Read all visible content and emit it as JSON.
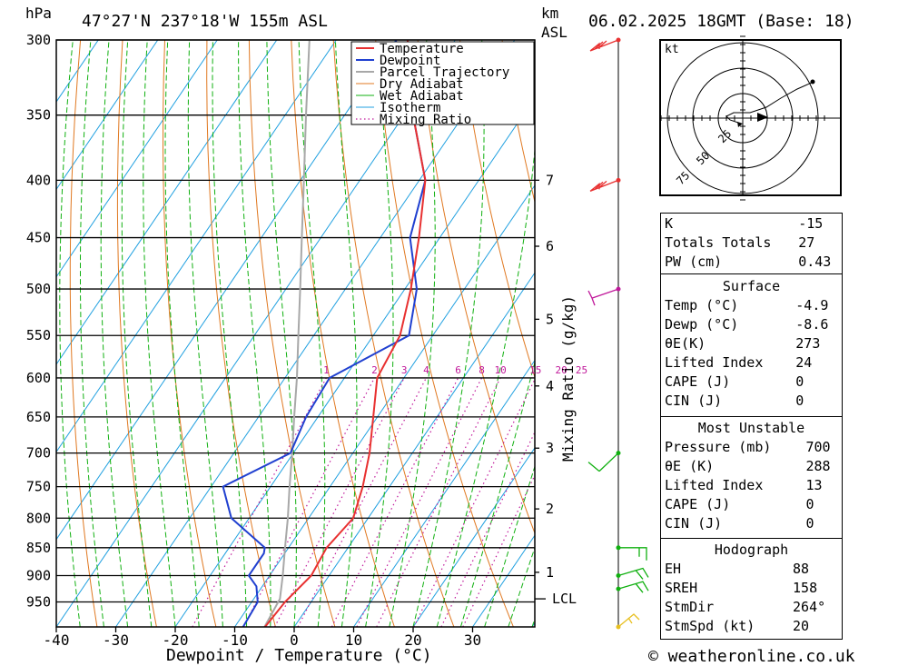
{
  "header": {
    "unit_hpa": "hPa",
    "location": "47°27'N  237°18'W  155m  ASL",
    "km_label": "km",
    "asl_label": "ASL",
    "datetime": "06.02.2025  18GMT  (Base: 18)"
  },
  "chart_data": {
    "type": "line",
    "title": "47°27'N  237°18'W  155m  ASL",
    "xlabel": "Dewpoint / Temperature (°C)",
    "ylabel": "hPa",
    "y2label": "Mixing Ratio (g/kg)",
    "x_ticks": [
      -40,
      -30,
      -20,
      -10,
      0,
      10,
      20,
      30
    ],
    "pressure_ticks": [
      300,
      350,
      400,
      450,
      500,
      550,
      600,
      650,
      700,
      750,
      800,
      850,
      900,
      950
    ],
    "km_ticks": [
      {
        "km": "7",
        "p": 400
      },
      {
        "km": "6",
        "p": 458
      },
      {
        "km": "5",
        "p": 532
      },
      {
        "km": "4",
        "p": 610
      },
      {
        "km": "3",
        "p": 693
      },
      {
        "km": "2",
        "p": 785
      },
      {
        "km": "1",
        "p": 894
      }
    ],
    "lcl_label": "LCL",
    "lcl_pressure": 944,
    "mixing_ratio_labels": [
      "1",
      "2",
      "3",
      "4",
      "6",
      "8",
      "10",
      "15",
      "20",
      "25"
    ],
    "legend": [
      "Temperature",
      "Dewpoint",
      "Parcel Trajectory",
      "Dry Adiabat",
      "Wet Adiabat",
      "Isotherm",
      "Mixing Ratio"
    ],
    "colors": {
      "temperature": "#e83030",
      "dewpoint": "#2040d0",
      "parcel": "#a8a8a8",
      "dry_adiabat": "#e07820",
      "wet_adiabat": "#10b010",
      "isotherm": "#20a0e0",
      "mixing_ratio": "#c0189a"
    },
    "series": [
      {
        "name": "Temperature",
        "points": [
          [
            1000,
            -4.9
          ],
          [
            950,
            -4.4
          ],
          [
            900,
            -3.0
          ],
          [
            850,
            -3.6
          ],
          [
            800,
            -2.5
          ],
          [
            750,
            -4.5
          ],
          [
            700,
            -7.2
          ],
          [
            650,
            -10.7
          ],
          [
            600,
            -14.5
          ],
          [
            550,
            -15.5
          ],
          [
            500,
            -19.0
          ],
          [
            450,
            -23.5
          ],
          [
            400,
            -29.0
          ],
          [
            350,
            -38.5
          ],
          [
            300,
            -48.0
          ]
        ]
      },
      {
        "name": "Dewpoint",
        "points": [
          [
            1000,
            -8.6
          ],
          [
            950,
            -9.0
          ],
          [
            920,
            -11.0
          ],
          [
            900,
            -13.5
          ],
          [
            860,
            -13.5
          ],
          [
            850,
            -14.0
          ],
          [
            800,
            -23.0
          ],
          [
            750,
            -28.0
          ],
          [
            700,
            -20.5
          ],
          [
            650,
            -22.0
          ],
          [
            600,
            -22.5
          ],
          [
            550,
            -14.0
          ],
          [
            500,
            -18.0
          ],
          [
            450,
            -25.0
          ],
          [
            400,
            -29.0
          ],
          [
            350,
            -38.5
          ],
          [
            300,
            -50.0
          ]
        ]
      },
      {
        "name": "Parcel Trajectory",
        "points": [
          [
            1000,
            -5.0
          ],
          [
            944,
            -5.6
          ],
          [
            900,
            -7.8
          ],
          [
            850,
            -10.6
          ],
          [
            800,
            -13.5
          ],
          [
            750,
            -16.8
          ],
          [
            700,
            -20.2
          ],
          [
            650,
            -24.0
          ],
          [
            600,
            -28.0
          ],
          [
            550,
            -32.6
          ],
          [
            500,
            -37.6
          ],
          [
            450,
            -43.2
          ],
          [
            400,
            -49.4
          ],
          [
            350,
            -56.5
          ],
          [
            300,
            -64.5
          ]
        ]
      }
    ]
  },
  "wind_barbs": [
    {
      "p": 300,
      "color": "#e83030"
    },
    {
      "p": 400,
      "color": "#e83030"
    },
    {
      "p": 500,
      "color": "#c0189a"
    },
    {
      "p": 700,
      "color": "#10b010"
    },
    {
      "p": 850,
      "color": "#10b010"
    },
    {
      "p": 900,
      "color": "#10b010"
    },
    {
      "p": 925,
      "color": "#10b010"
    },
    {
      "p": 1000,
      "color": "#e8c020"
    }
  ],
  "hodograph": {
    "unit": "kt",
    "ring_labels": [
      "25",
      "50",
      "75"
    ]
  },
  "indices": {
    "k_label": "K",
    "k_value": "-15",
    "tt_label": "Totals Totals",
    "tt_value": "27",
    "pw_label": "PW (cm)",
    "pw_value": "0.43"
  },
  "surface": {
    "title": "Surface",
    "temp_label": "Temp (°C)",
    "temp_value": "-4.9",
    "dewp_label": "Dewp (°C)",
    "dewp_value": "-8.6",
    "theta_label": "θE(K)",
    "theta_value": "273",
    "li_label": "Lifted Index",
    "li_value": "24",
    "cape_label": "CAPE (J)",
    "cape_value": "0",
    "cin_label": "CIN (J)",
    "cin_value": "0"
  },
  "most_unstable": {
    "title": "Most Unstable",
    "pressure_label": "Pressure (mb)",
    "pressure_value": "700",
    "theta_label": "θE (K)",
    "theta_value": "288",
    "li_label": "Lifted Index",
    "li_value": "13",
    "cape_label": "CAPE (J)",
    "cape_value": "0",
    "cin_label": "CIN (J)",
    "cin_value": "0"
  },
  "hodo_table": {
    "title": "Hodograph",
    "eh_label": "EH",
    "eh_value": "88",
    "srh_label": "SREH",
    "srh_value": "158",
    "dir_label": "StmDir",
    "dir_value": "264°",
    "spd_label": "StmSpd (kt)",
    "spd_value": "20"
  },
  "footer": {
    "credit": "© weatheronline.co.uk"
  }
}
